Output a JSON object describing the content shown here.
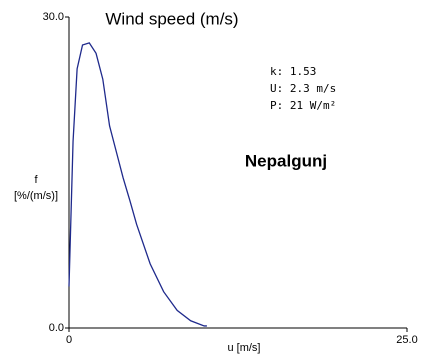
{
  "chart_data": {
    "type": "line",
    "title": "Wind speed (m/s)",
    "subtitle": "Nepalgunj",
    "annotations": [
      "k: 1.53",
      "U: 2.3 m/s",
      "P: 21 W/m²"
    ],
    "x_label": "u [m/s]",
    "y_label": [
      "f",
      "[%/(m/s)]"
    ],
    "x": [
      0,
      0.3,
      0.6,
      1.0,
      1.5,
      2.0,
      2.5,
      3.0,
      3.5,
      4.0,
      4.5,
      5.0,
      6.0,
      7.0,
      8.0,
      9.0,
      10.0,
      10.2
    ],
    "series": [
      {
        "color": "#1f2a8c",
        "values": [
          4,
          18,
          25,
          27.3,
          27.5,
          26.5,
          24,
          19.5,
          17,
          14.5,
          12.3,
          10,
          6.2,
          3.5,
          1.7,
          0.7,
          0.2,
          0.2
        ]
      }
    ],
    "xlim": [
      0,
      25
    ],
    "ylim": [
      0,
      30
    ],
    "xticks": [
      0,
      {
        "value": 25,
        "label": "25.0"
      }
    ],
    "yticks": [
      {
        "value": 0,
        "label": "0.0"
      },
      {
        "value": 30,
        "label": "30.0"
      }
    ]
  }
}
